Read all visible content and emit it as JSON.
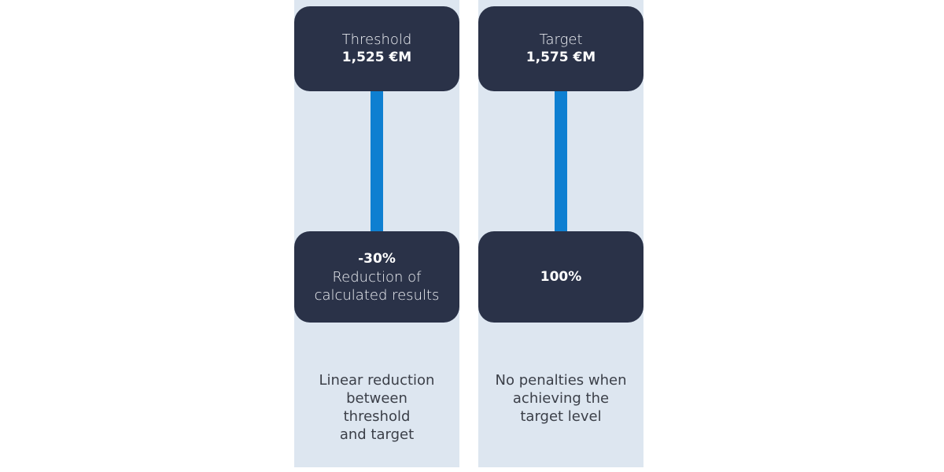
{
  "colors": {
    "panel_bg": "#dde6f0",
    "box_bg": "#2a3248",
    "connector": "#0e7fd1",
    "caption_text": "#3b3f48"
  },
  "left": {
    "top_label": "Threshold",
    "top_value": "1,525 €M",
    "bottom_value": "-30%",
    "bottom_line1": "Reduction of",
    "bottom_line2": "calculated results",
    "caption_lines": [
      "Linear reduction",
      "between",
      "threshold",
      "and target"
    ]
  },
  "right": {
    "top_label": "Target",
    "top_value": "1,575 €M",
    "bottom_value": "100%",
    "caption_lines": [
      "No penalties when",
      "achieving the",
      "target level"
    ]
  }
}
